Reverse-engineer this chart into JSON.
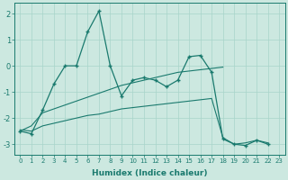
{
  "xlabel": "Humidex (Indice chaleur)",
  "x": [
    0,
    1,
    2,
    3,
    4,
    5,
    6,
    7,
    8,
    9,
    10,
    11,
    12,
    13,
    14,
    15,
    16,
    17,
    18,
    19,
    20,
    21,
    22,
    23
  ],
  "line1_y": [
    -2.5,
    -2.6,
    -1.7,
    -0.7,
    0.0,
    0.0,
    1.3,
    2.1,
    0.0,
    -1.15,
    -0.55,
    -0.45,
    -0.55,
    -0.8,
    -0.55,
    0.35,
    0.4,
    -0.25,
    -2.8,
    -3.0,
    -3.05,
    -2.85,
    -3.0,
    null
  ],
  "line2_y": [
    -2.5,
    -2.3,
    -1.8,
    -1.65,
    -1.5,
    -1.35,
    -1.2,
    -1.05,
    -0.9,
    -0.75,
    -0.65,
    -0.55,
    -0.45,
    -0.35,
    -0.25,
    -0.2,
    -0.15,
    -0.1,
    -0.05,
    null,
    null,
    null,
    null,
    null
  ],
  "line3_y": [
    -2.45,
    -2.5,
    -2.3,
    -2.2,
    -2.1,
    -2.0,
    -1.9,
    -1.85,
    -1.75,
    -1.65,
    -1.6,
    -1.55,
    -1.5,
    -1.45,
    -1.4,
    -1.35,
    -1.3,
    -1.25,
    -2.75,
    -3.0,
    -2.95,
    -2.85,
    -2.95,
    null
  ],
  "line_color": "#1a7a6e",
  "bg_color": "#cce8e0",
  "grid_color": "#a8d4ca",
  "ylim": [
    -3.4,
    2.4
  ],
  "yticks": [
    -3,
    -2,
    -1,
    0,
    1,
    2
  ],
  "xlim": [
    -0.5,
    23.5
  ]
}
